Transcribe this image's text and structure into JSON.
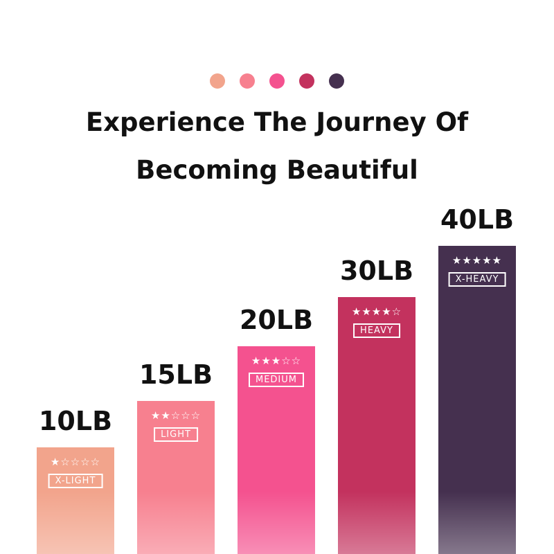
{
  "dots": [
    "#F2A48C",
    "#F7808F",
    "#F4528F",
    "#C3325E",
    "#45304F"
  ],
  "title": {
    "line1": "Experience The Journey Of",
    "line2": "Becoming Beautiful"
  },
  "bars": [
    {
      "weight": "10LB",
      "stars": "★☆☆☆☆",
      "rating": 1,
      "level": "X-LIGHT",
      "color": "#F2A48C"
    },
    {
      "weight": "15LB",
      "stars": "★★☆☆☆",
      "rating": 2,
      "level": "LIGHT",
      "color": "#F7808F"
    },
    {
      "weight": "20LB",
      "stars": "★★★☆☆",
      "rating": 3,
      "level": "MEDIUM",
      "color": "#F4528F"
    },
    {
      "weight": "30LB",
      "stars": "★★★★☆",
      "rating": 4,
      "level": "HEAVY",
      "color": "#C3325E"
    },
    {
      "weight": "40LB",
      "stars": "★★★★★",
      "rating": 5,
      "level": "X-HEAVY",
      "color": "#45304F"
    }
  ]
}
